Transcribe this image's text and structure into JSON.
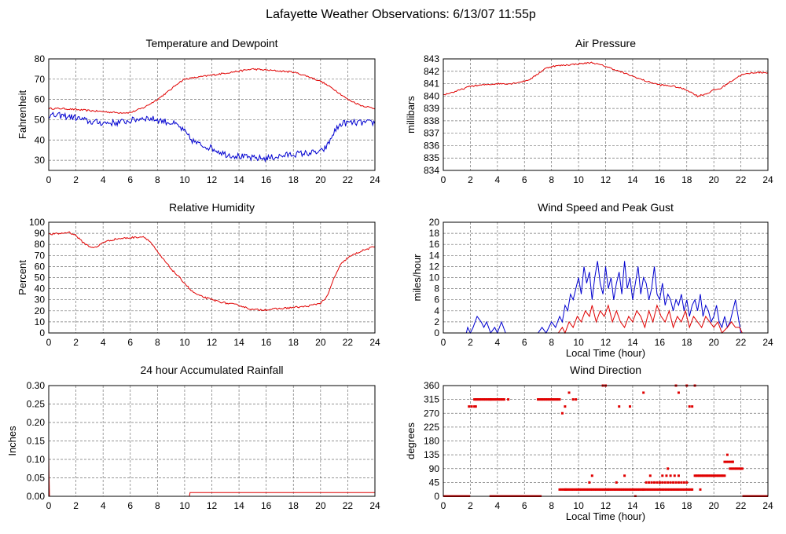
{
  "page": {
    "title": "Lafayette Weather Observations: 6/13/07 11:55p"
  },
  "colors": {
    "red": "#e00000",
    "blue": "#0000d0"
  },
  "chart_data": [
    {
      "id": "temp",
      "type": "line",
      "title": "Temperature and Dewpoint",
      "xlabel": "",
      "ylabel": "Fahrenheit",
      "xlim": [
        0,
        24
      ],
      "ylim": [
        25,
        80
      ],
      "xticks": [
        0,
        2,
        4,
        6,
        8,
        10,
        12,
        14,
        16,
        18,
        20,
        22,
        24
      ],
      "yticks": [
        30,
        40,
        50,
        60,
        70,
        80
      ],
      "series": [
        {
          "color": "#e00000",
          "x": [
            0,
            1,
            2,
            3,
            4,
            5,
            6,
            7,
            8,
            9,
            9.5,
            10,
            11,
            12,
            13,
            14,
            15,
            16,
            17,
            18,
            19,
            20,
            21,
            22,
            23,
            24
          ],
          "values": [
            55.5,
            55.5,
            55,
            54.5,
            54,
            53.5,
            53.5,
            56,
            60,
            65,
            68,
            70,
            71,
            72,
            73,
            74,
            75,
            74.5,
            74,
            73.5,
            71.5,
            69,
            65,
            60,
            57,
            55.5
          ],
          "noise": 0.4
        },
        {
          "color": "#0000d0",
          "x": [
            0,
            1,
            2,
            3,
            4,
            5,
            6,
            7,
            8,
            9,
            9.5,
            10,
            10.5,
            11,
            12,
            13,
            14,
            15,
            16,
            17,
            18,
            19,
            20,
            20.5,
            21,
            21.5,
            22,
            23,
            24
          ],
          "values": [
            52,
            52,
            51,
            49,
            48.5,
            48.5,
            49.5,
            51,
            50,
            48.5,
            47,
            44,
            40,
            38,
            36,
            33,
            32,
            31,
            31,
            32,
            33,
            33.5,
            34,
            37,
            44,
            48,
            48.5,
            48.5,
            48.5
          ],
          "noise": 1.6
        }
      ]
    },
    {
      "id": "pressure",
      "type": "line",
      "title": "Air Pressure",
      "xlabel": "",
      "ylabel": "millibars",
      "xlim": [
        0,
        24
      ],
      "ylim": [
        834,
        843
      ],
      "xticks": [
        0,
        2,
        4,
        6,
        8,
        10,
        12,
        14,
        16,
        18,
        20,
        22,
        24
      ],
      "yticks": [
        834,
        835,
        836,
        837,
        838,
        839,
        840,
        841,
        842,
        843
      ],
      "series": [
        {
          "color": "#e00000",
          "x": [
            0,
            1,
            2,
            3,
            4,
            5,
            6,
            6.5,
            7,
            7.5,
            8,
            9,
            10,
            11,
            12,
            13,
            14,
            15,
            16,
            17,
            18,
            18.8,
            19.5,
            20,
            20.5,
            21,
            22,
            23,
            24
          ],
          "values": [
            840.1,
            840.4,
            840.8,
            840.9,
            841.0,
            841.0,
            841.2,
            841.4,
            841.8,
            842.2,
            842.4,
            842.5,
            842.6,
            842.7,
            842.4,
            842.0,
            841.6,
            841.2,
            840.9,
            840.8,
            840.5,
            840.0,
            840.2,
            840.5,
            840.6,
            841.0,
            841.7,
            841.9,
            841.9
          ],
          "noise": 0.06
        }
      ]
    },
    {
      "id": "humidity",
      "type": "line",
      "title": "Relative Humidity",
      "xlabel": "",
      "ylabel": "Percent",
      "xlim": [
        0,
        24
      ],
      "ylim": [
        0,
        100
      ],
      "xticks": [
        0,
        2,
        4,
        6,
        8,
        10,
        12,
        14,
        16,
        18,
        20,
        22,
        24
      ],
      "yticks": [
        0,
        10,
        20,
        30,
        40,
        50,
        60,
        70,
        80,
        90,
        100
      ],
      "series": [
        {
          "color": "#e00000",
          "x": [
            0,
            1,
            1.5,
            2,
            2.5,
            3,
            3.5,
            4,
            5,
            6,
            7,
            7.5,
            8,
            9,
            10,
            10.5,
            11,
            12,
            13,
            14,
            15,
            16,
            17,
            18,
            19,
            20,
            20.5,
            21,
            21.5,
            22,
            23,
            24
          ],
          "values": [
            89,
            90,
            91,
            88,
            82,
            78,
            77,
            82,
            85,
            86,
            87,
            82,
            73,
            58,
            45,
            38,
            34,
            30,
            27,
            25,
            21,
            21,
            22,
            23,
            24,
            27,
            33,
            50,
            62,
            68,
            74,
            78
          ],
          "noise": 0.8
        }
      ]
    },
    {
      "id": "wind",
      "type": "line",
      "title": "Wind Speed and Peak Gust",
      "xlabel": "Local Time (hour)",
      "ylabel": "miles/hour",
      "xlim": [
        0,
        24
      ],
      "ylim": [
        0,
        20
      ],
      "xticks": [
        0,
        2,
        4,
        6,
        8,
        10,
        12,
        14,
        16,
        18,
        20,
        22,
        24
      ],
      "yticks": [
        0,
        2,
        4,
        6,
        8,
        10,
        12,
        14,
        16,
        18,
        20
      ],
      "series": [
        {
          "color": "#0000d0",
          "x": [
            0,
            1.7,
            1.8,
            2.0,
            2.2,
            2.5,
            2.8,
            3.0,
            3.2,
            3.5,
            3.8,
            4.0,
            4.3,
            4.6,
            4.8,
            7.0,
            7.3,
            7.6,
            8.0,
            8.3,
            8.6,
            8.8,
            9.0,
            9.2,
            9.4,
            9.6,
            9.8,
            10.0,
            10.2,
            10.4,
            10.6,
            10.8,
            11.0,
            11.2,
            11.4,
            11.6,
            11.8,
            12.0,
            12.2,
            12.4,
            12.6,
            12.8,
            13.0,
            13.2,
            13.4,
            13.6,
            13.8,
            14.0,
            14.2,
            14.4,
            14.6,
            14.8,
            15.0,
            15.2,
            15.4,
            15.6,
            15.8,
            16.0,
            16.2,
            16.4,
            16.6,
            16.8,
            17.0,
            17.2,
            17.4,
            17.6,
            17.8,
            18.0,
            18.2,
            18.4,
            18.6,
            18.8,
            19.0,
            19.2,
            19.4,
            19.6,
            19.8,
            20.0,
            20.2,
            20.4,
            20.6,
            20.8,
            21.0,
            21.2,
            21.4,
            21.6,
            21.8,
            22.0,
            22.2,
            24
          ],
          "values": [
            0,
            0,
            1,
            0,
            1,
            3,
            2,
            1,
            2,
            0,
            1,
            0,
            2,
            0,
            0,
            0,
            1,
            0,
            2,
            1,
            3,
            2,
            5,
            4,
            7,
            6,
            8,
            10,
            7,
            12,
            9,
            11,
            6,
            10,
            13,
            9,
            7,
            12,
            8,
            10,
            6,
            9,
            11,
            7,
            13,
            8,
            10,
            6,
            9,
            12,
            7,
            10,
            9,
            6,
            8,
            12,
            7,
            6,
            9,
            5,
            7,
            6,
            4,
            6,
            5,
            7,
            4,
            6,
            3,
            5,
            6,
            4,
            7,
            3,
            5,
            4,
            2,
            3,
            5,
            2,
            1,
            3,
            1,
            2,
            4,
            6,
            3,
            0,
            0,
            0
          ],
          "noise": 0
        },
        {
          "color": "#e00000",
          "x": [
            0,
            8.5,
            8.8,
            9.0,
            9.3,
            9.6,
            9.9,
            10.2,
            10.5,
            10.8,
            11.0,
            11.3,
            11.6,
            11.9,
            12.2,
            12.5,
            12.8,
            13.1,
            13.4,
            13.7,
            14.0,
            14.3,
            14.6,
            14.9,
            15.2,
            15.5,
            15.8,
            16.1,
            16.4,
            16.7,
            17.0,
            17.3,
            17.6,
            17.9,
            18.2,
            18.5,
            18.8,
            19.1,
            19.4,
            19.7,
            20.0,
            20.3,
            20.6,
            21.0,
            21.3,
            21.6,
            21.9,
            22.1,
            24
          ],
          "values": [
            0,
            0,
            1,
            0,
            2,
            1,
            3,
            2,
            4,
            3,
            5,
            2,
            4,
            3,
            5,
            2,
            4,
            2,
            1,
            3,
            2,
            4,
            3,
            1,
            4,
            2,
            5,
            3,
            2,
            4,
            1,
            3,
            2,
            4,
            1,
            3,
            2,
            1,
            3,
            2,
            1,
            2,
            0,
            1,
            2,
            1,
            1,
            0,
            0
          ],
          "noise": 0
        }
      ]
    },
    {
      "id": "rain",
      "type": "line",
      "title": "24 hour Accumulated Rainfall",
      "xlabel": "",
      "ylabel": "Inches",
      "xlim": [
        0,
        24
      ],
      "ylim": [
        0,
        0.3
      ],
      "xticks": [
        0,
        2,
        4,
        6,
        8,
        10,
        12,
        14,
        16,
        18,
        20,
        22,
        24
      ],
      "yticks": [
        "0.00",
        "0.05",
        "0.10",
        "0.15",
        "0.20",
        "0.25",
        "0.30"
      ],
      "series": [
        {
          "color": "#e00000",
          "x": [
            0,
            0.02,
            0.06,
            0.1,
            10.35,
            10.4,
            24
          ],
          "values": [
            0.12,
            0.07,
            0.0,
            0.0,
            0.0,
            0.01,
            0.01
          ],
          "noise": 0
        }
      ]
    },
    {
      "id": "direction",
      "type": "scatter",
      "title": "Wind Direction",
      "xlabel": "Local Time (hour)",
      "ylabel": "degrees",
      "xlim": [
        0,
        24
      ],
      "ylim": [
        0,
        360
      ],
      "xticks": [
        0,
        2,
        4,
        6,
        8,
        10,
        12,
        14,
        16,
        18,
        20,
        22,
        24
      ],
      "yticks": [
        0,
        45,
        90,
        135,
        180,
        225,
        270,
        315,
        360
      ],
      "series": [
        {
          "color": "#e00000",
          "runs": [
            [
              0.0,
              1.9,
              0,
              0.1
            ],
            [
              1.9,
              2.3,
              292,
              0.2
            ],
            [
              2.3,
              3.5,
              315,
              0.1
            ],
            [
              3.5,
              7.2,
              0,
              0.08
            ],
            [
              3.5,
              4.5,
              315,
              0.1
            ],
            [
              7.0,
              8.6,
              315,
              0.1
            ],
            [
              8.6,
              9.1,
              22,
              0.15
            ],
            [
              9.0,
              12.2,
              22,
              0.1
            ],
            [
              12.2,
              14.8,
              22,
              0.1
            ],
            [
              14.8,
              18.5,
              22,
              0.12
            ],
            [
              15.0,
              16.0,
              45,
              0.2
            ],
            [
              16.0,
              18.0,
              45,
              0.2
            ],
            [
              16.2,
              17.5,
              67,
              0.3
            ],
            [
              18.6,
              20.8,
              67,
              0.1
            ],
            [
              20.8,
              21.5,
              112,
              0.15
            ],
            [
              21.2,
              22.2,
              90,
              0.15
            ],
            [
              22.2,
              24.0,
              0,
              0.1
            ]
          ],
          "points": [
            [
              2.4,
              292
            ],
            [
              8.8,
              270
            ],
            [
              9.0,
              292
            ],
            [
              9.3,
              337
            ],
            [
              9.6,
              315
            ],
            [
              9.8,
              315
            ],
            [
              10.8,
              45
            ],
            [
              11.0,
              67
            ],
            [
              11.8,
              360
            ],
            [
              12.0,
              360
            ],
            [
              12.8,
              45
            ],
            [
              13.0,
              292
            ],
            [
              13.4,
              67
            ],
            [
              13.8,
              292
            ],
            [
              14.2,
              0
            ],
            [
              14.8,
              337
            ],
            [
              15.3,
              67
            ],
            [
              16.6,
              90
            ],
            [
              17.2,
              360
            ],
            [
              17.4,
              337
            ],
            [
              18.0,
              360
            ],
            [
              18.2,
              292
            ],
            [
              18.4,
              292
            ],
            [
              18.6,
              360
            ],
            [
              19.0,
              22
            ],
            [
              21.0,
              135
            ],
            [
              21.4,
              112
            ],
            [
              4.8,
              315
            ],
            [
              6.5,
              0
            ]
          ]
        }
      ]
    }
  ]
}
